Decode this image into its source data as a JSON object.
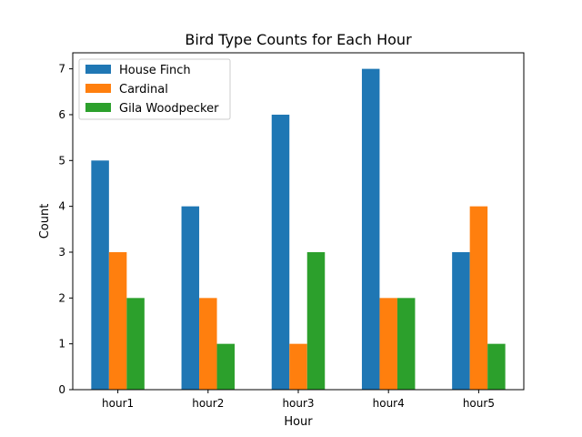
{
  "chart_data": {
    "type": "bar",
    "title": "Bird Type Counts for Each Hour",
    "xlabel": "Hour",
    "ylabel": "Count",
    "categories": [
      "hour1",
      "hour2",
      "hour3",
      "hour4",
      "hour5"
    ],
    "ylim": [
      0,
      7.35
    ],
    "yticks": [
      0,
      1,
      2,
      3,
      4,
      5,
      6,
      7
    ],
    "grid": false,
    "legend_position": "top-left",
    "series": [
      {
        "name": "House Finch",
        "color": "#1f77b4",
        "values": [
          5,
          4,
          6,
          7,
          3
        ]
      },
      {
        "name": "Cardinal",
        "color": "#ff7f0e",
        "values": [
          3,
          2,
          1,
          2,
          4
        ]
      },
      {
        "name": "Gila Woodpecker",
        "color": "#2ca02c",
        "values": [
          2,
          1,
          3,
          2,
          1
        ]
      }
    ]
  }
}
